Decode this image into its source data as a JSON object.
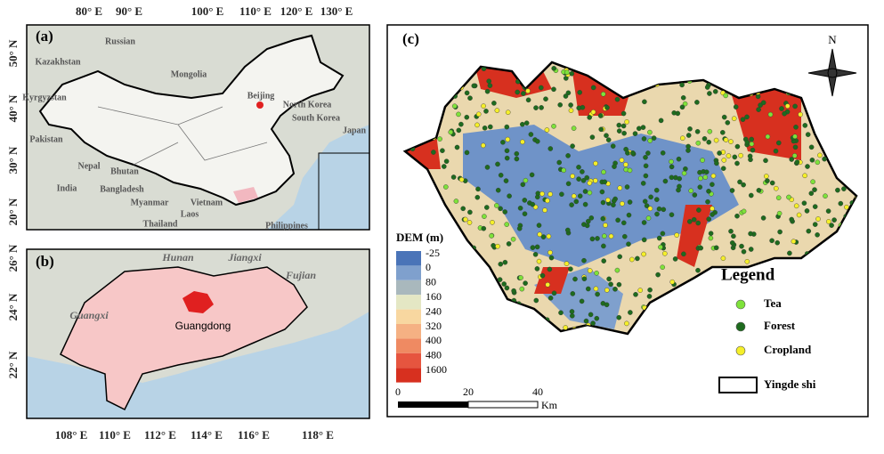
{
  "panel_a": {
    "label": "(a)",
    "lon_ticks": [
      "80° E",
      "90° E",
      "100° E",
      "110° E",
      "120° E",
      "130° E"
    ],
    "lat_ticks": [
      "50° N",
      "40° N",
      "30° N",
      "20° N"
    ],
    "places": [
      "Russian",
      "Kazakhstan",
      "Mongolia",
      "Kyrgyzstan",
      "Beijing",
      "North Korea",
      "South Korea",
      "Japan",
      "Pakistan",
      "Nepal",
      "Bhutan",
      "India",
      "Bangladesh",
      "Myanmar",
      "Thailand",
      "Laos",
      "Vietnam",
      "Philippines"
    ]
  },
  "panel_b": {
    "label": "(b)",
    "lon_ticks": [
      "108° E",
      "110° E",
      "112° E",
      "114° E",
      "116° E",
      "118° E"
    ],
    "lat_ticks": [
      "26° N",
      "24° N",
      "22° N"
    ],
    "provinces": [
      "Hunan",
      "Jiangxi",
      "Fujian",
      "Guangxi"
    ],
    "study_province": "Guangdong"
  },
  "panel_c": {
    "label": "(c)",
    "dem_title": "DEM (m)",
    "dem_classes": [
      "-25",
      "0",
      "80",
      "160",
      "240",
      "320",
      "400",
      "480",
      "1600"
    ],
    "scale_ticks": [
      "0",
      "20",
      "40"
    ],
    "scale_unit": "Km",
    "north": "N",
    "legend_title": "Legend",
    "legend_items": [
      "Tea",
      "Forest",
      "Cropland",
      "Yingde shi"
    ]
  }
}
